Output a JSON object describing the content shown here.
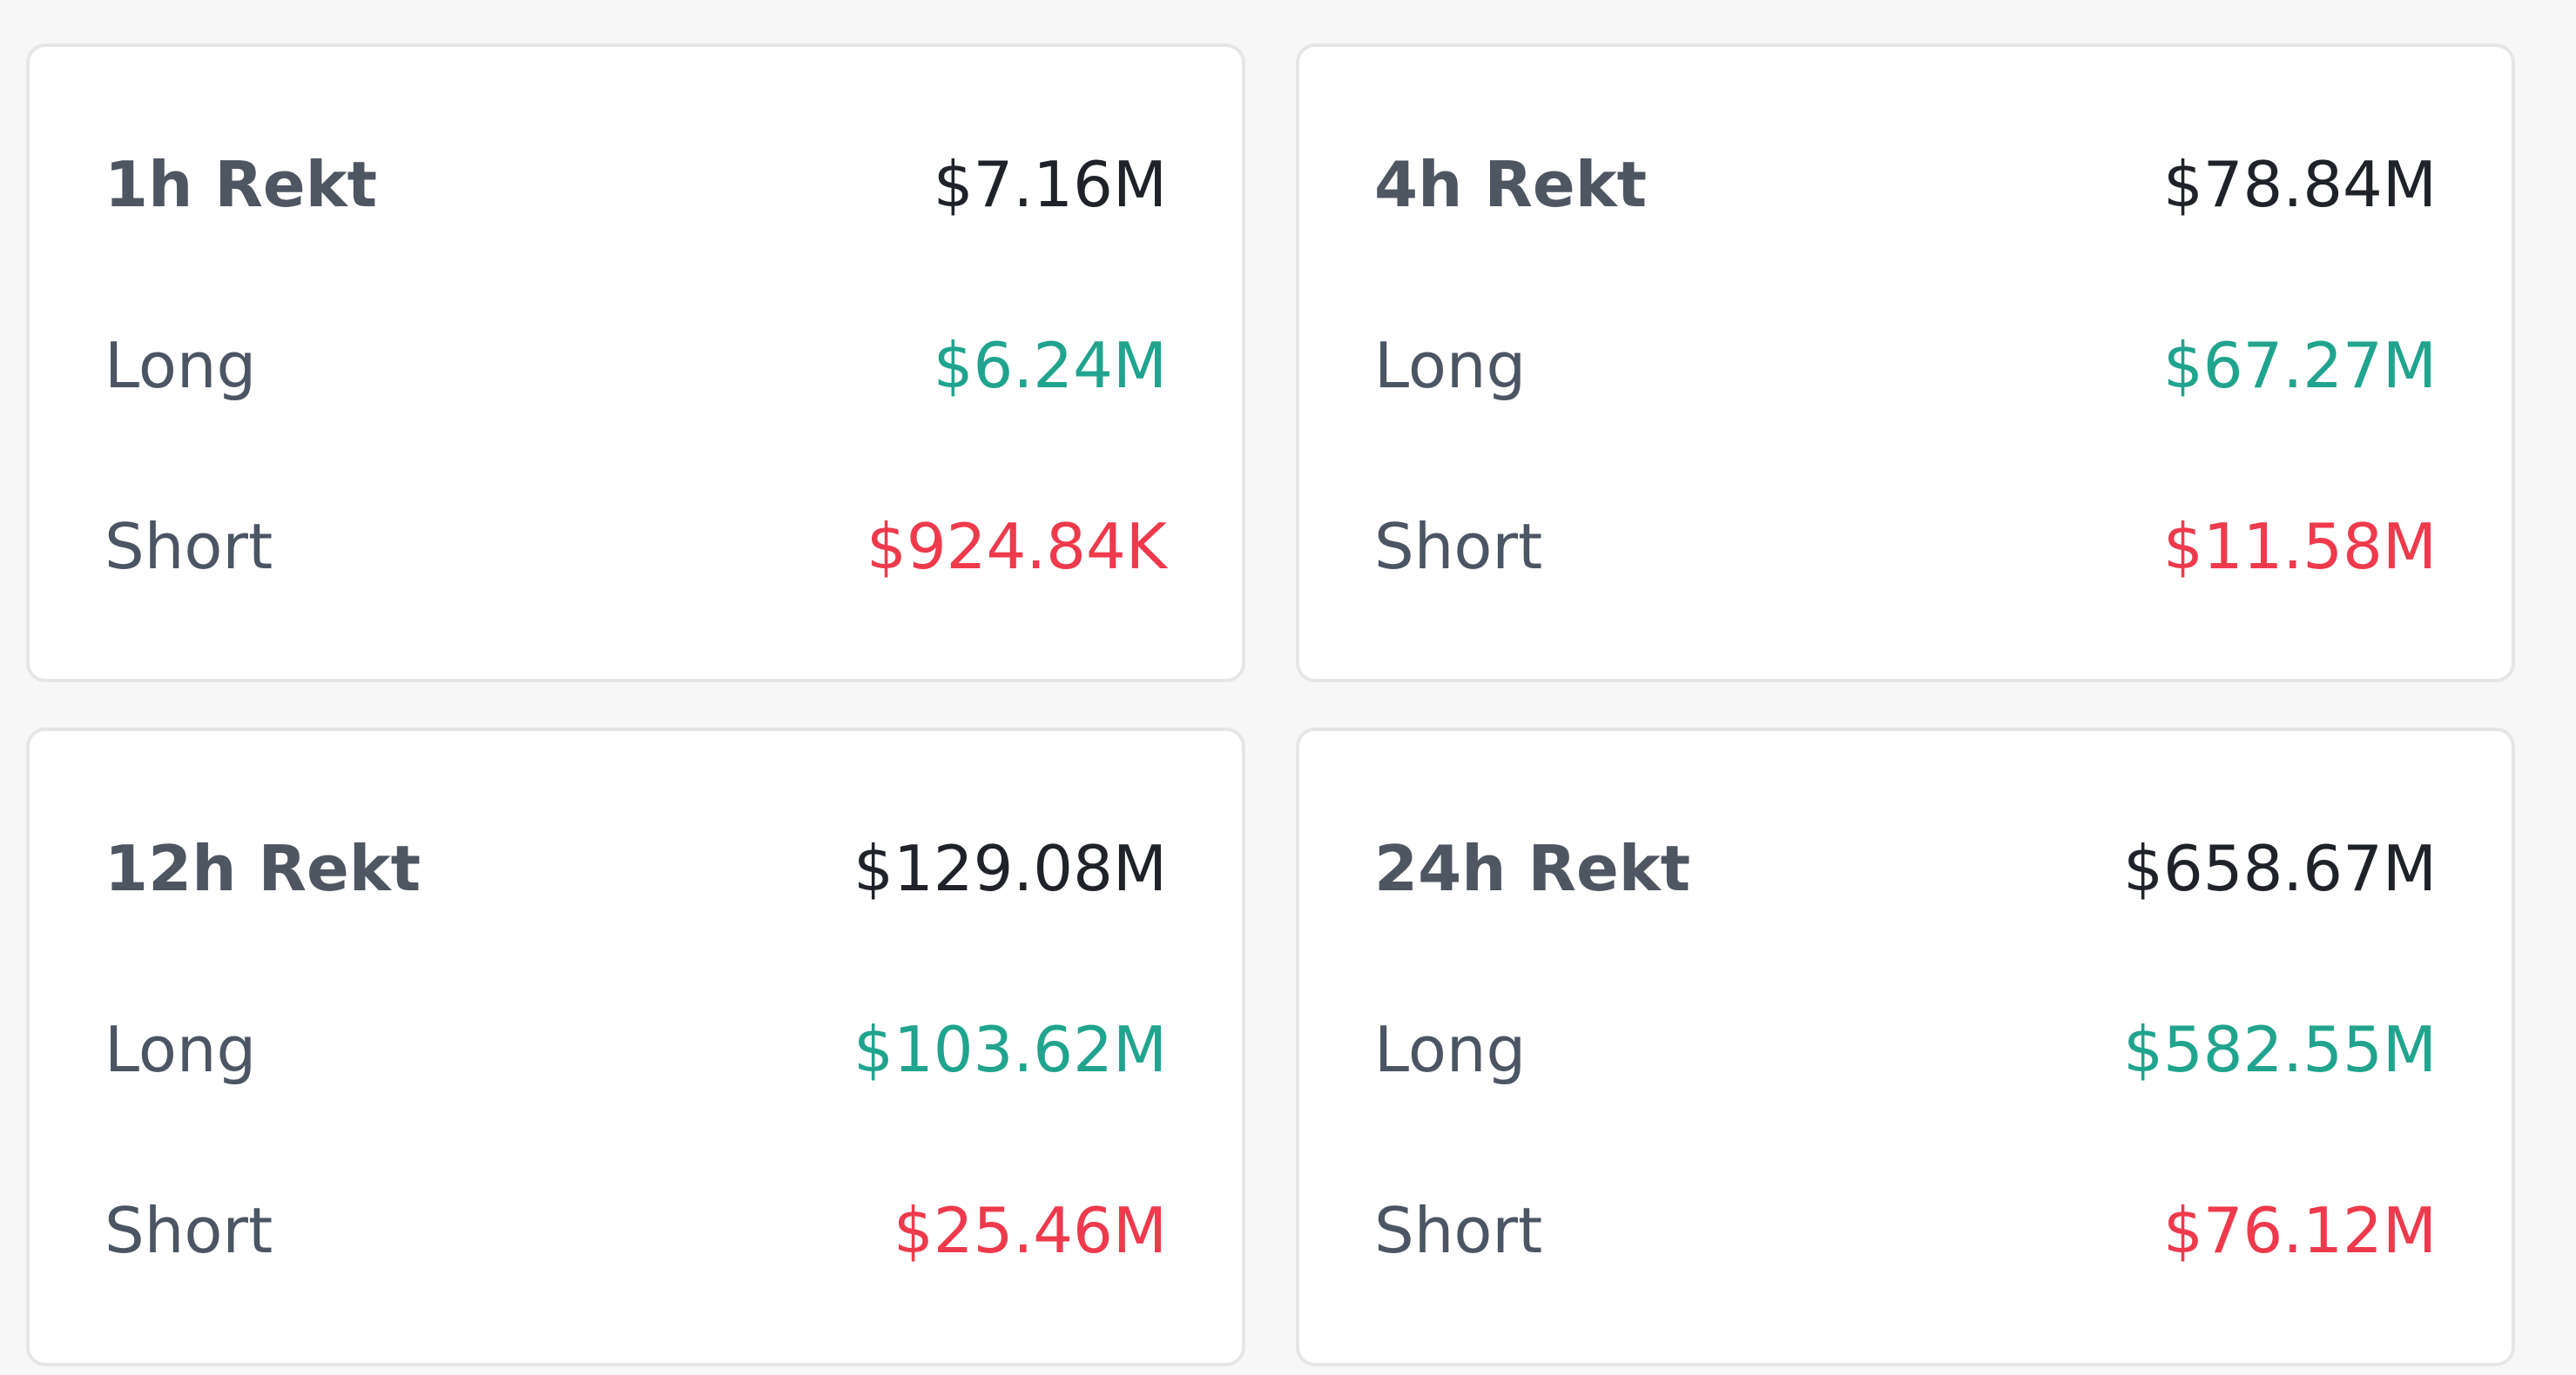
{
  "colors": {
    "long": "#20a48e",
    "short": "#ee3a4c",
    "total": "#1f2329"
  },
  "cards": [
    {
      "title": "1h Rekt",
      "total": "$7.16M",
      "long_label": "Long",
      "long_value": "$6.24M",
      "short_label": "Short",
      "short_value": "$924.84K"
    },
    {
      "title": "4h Rekt",
      "total": "$78.84M",
      "long_label": "Long",
      "long_value": "$67.27M",
      "short_label": "Short",
      "short_value": "$11.58M"
    },
    {
      "title": "12h Rekt",
      "total": "$129.08M",
      "long_label": "Long",
      "long_value": "$103.62M",
      "short_label": "Short",
      "short_value": "$25.46M"
    },
    {
      "title": "24h Rekt",
      "total": "$658.67M",
      "long_label": "Long",
      "long_value": "$582.55M",
      "short_label": "Short",
      "short_value": "$76.12M"
    }
  ]
}
